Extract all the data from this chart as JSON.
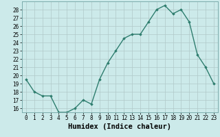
{
  "xlabel": "Humidex (Indice chaleur)",
  "x": [
    0,
    1,
    2,
    3,
    4,
    5,
    6,
    7,
    8,
    9,
    10,
    11,
    12,
    13,
    14,
    15,
    16,
    17,
    18,
    19,
    20,
    21,
    22,
    23
  ],
  "y": [
    19.5,
    18.0,
    17.5,
    17.5,
    15.5,
    15.5,
    16.0,
    17.0,
    16.5,
    19.5,
    21.5,
    23.0,
    24.5,
    25.0,
    25.0,
    26.5,
    28.0,
    28.5,
    27.5,
    28.0,
    26.5,
    22.5,
    21.0,
    19.0
  ],
  "line_color": "#2e7d6e",
  "marker": "D",
  "marker_size": 1.8,
  "bg_color": "#cceaea",
  "grid_color": "#b0c8c8",
  "ylim": [
    15.5,
    29.0
  ],
  "yticks": [
    16,
    17,
    18,
    19,
    20,
    21,
    22,
    23,
    24,
    25,
    26,
    27,
    28
  ],
  "xticks": [
    0,
    1,
    2,
    3,
    4,
    5,
    6,
    7,
    8,
    9,
    10,
    11,
    12,
    13,
    14,
    15,
    16,
    17,
    18,
    19,
    20,
    21,
    22,
    23
  ],
  "tick_fontsize": 5.5,
  "xlabel_fontsize": 7.5,
  "line_width": 1.0
}
